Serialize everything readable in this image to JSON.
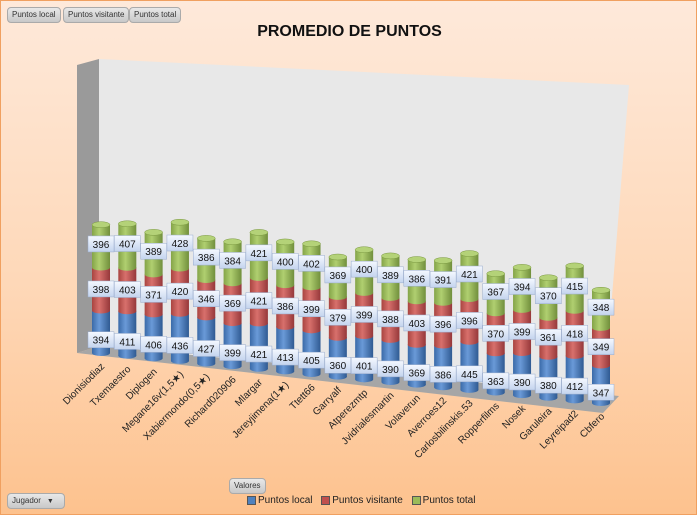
{
  "filter_buttons": [
    {
      "label": "Puntos local"
    },
    {
      "label": "Puntos visitante"
    },
    {
      "label": "Puntos total"
    }
  ],
  "values_button": {
    "label": "Valores"
  },
  "axis_field_button": {
    "label": "Jugador"
  },
  "chart_data": {
    "type": "bar",
    "subtype": "3d-stacked-cylinder",
    "title": "PROMEDIO DE PUNTOS",
    "xlabel": "",
    "ylabel": "",
    "legend_position": "bottom",
    "categories": [
      "Dionisiodiaz",
      "Txemaestro",
      "Diplogen",
      "Megane16v(1,5★)",
      "Xabiermondo(0,5★)",
      "Richard020906",
      "Mlargar",
      "Jereyjimena(1★)",
      "Ttett66",
      "Garryalf",
      "Atperezmtp",
      "Jvidrialesmartin",
      "Volaverun",
      "Averroes12",
      "Carlosbilinskis.53",
      "Ropperfilms",
      "Nosek",
      "Garuleira",
      "Leyreipad2",
      "Cbfero"
    ],
    "series": [
      {
        "name": "Puntos local",
        "color": "#4f81bd",
        "values": [
          394,
          411,
          406,
          436,
          427,
          399,
          421,
          413,
          405,
          360,
          401,
          390,
          369,
          386,
          445,
          363,
          390,
          380,
          412,
          347
        ]
      },
      {
        "name": "Puntos visitante",
        "color": "#c0504d",
        "values": [
          398,
          403,
          371,
          420,
          346,
          369,
          421,
          386,
          399,
          379,
          399,
          388,
          403,
          396,
          396,
          370,
          399,
          361,
          418,
          349
        ]
      },
      {
        "name": "Puntos total",
        "color": "#9bbb59",
        "values": [
          396,
          407,
          389,
          428,
          386,
          384,
          421,
          400,
          402,
          369,
          400,
          389,
          386,
          391,
          421,
          367,
          394,
          370,
          415,
          348
        ]
      }
    ]
  }
}
